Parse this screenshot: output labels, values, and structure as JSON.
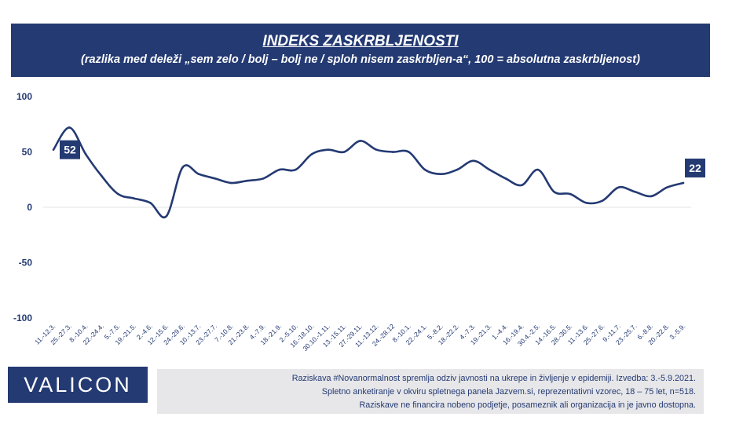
{
  "header": {
    "title": "INDEKS ZASKRBLJENOSTI",
    "subtitle": "(razlika med deleži „sem zelo / bolj – bolj  ne / sploh nisem zaskrbljen-a“, 100 = absolutna zaskrbljenost)"
  },
  "chart_data": {
    "type": "line",
    "title": "INDEKS ZASKRBLJENOSTI",
    "subtitle": "(razlika med deleži „sem zelo / bolj – bolj  ne / sploh nisem zaskrbljen-a“, 100 = absolutna zaskrbljenost)",
    "xlabel": "",
    "ylabel": "",
    "ylim": [
      -100,
      100
    ],
    "yticks": [
      "100",
      "50",
      "0",
      "-50",
      "-100"
    ],
    "grid": false,
    "color": "#243a73",
    "categories": [
      "11.-12.3.",
      "25.-27.3.",
      "8.-10.4.",
      "22.-24.4.",
      "5.-7.5.",
      "19.-21.5.",
      "2.-4.6.",
      "12.-15.6.",
      "24.-29.6.",
      "10.-13.7.",
      "23.-27.7.",
      "7.-10.8.",
      "21.-23.8.",
      "4.-7.9.",
      "18.-21.9.",
      "2.-5.10.",
      "16.-18.10.",
      "30.10.-1.11.",
      "13.-15.11.",
      "27.-29.11.",
      "11.-13.12.",
      "24.-28.12",
      "8.-10.1.",
      "22.-24.1.",
      "5.-8.2.",
      "18.-22.2.",
      "4.-7.3.",
      "19.-21.3.",
      "1.-4.4.",
      "16.-19.4.",
      "30.4.-2.5.",
      "14.-16.5.",
      "28.-30.5.",
      "11.-13.6.",
      "25.-27.6.",
      "9.-11.7.",
      "23.-25.7.",
      "6.-8.8.",
      "20.-22.8.",
      "3.-5.9."
    ],
    "series": [
      {
        "values": [
          52,
          72,
          48,
          28,
          12,
          8,
          4,
          -8,
          36,
          30,
          26,
          22,
          24,
          26,
          34,
          34,
          48,
          52,
          50,
          60,
          52,
          50,
          50,
          34,
          30,
          34,
          42,
          34,
          26,
          20,
          34,
          14,
          12,
          4,
          6,
          18,
          14,
          10,
          18,
          22
        ]
      }
    ],
    "labels": [
      {
        "index": 0,
        "text": "52"
      },
      {
        "index": 39,
        "text": "22"
      }
    ]
  },
  "logo": {
    "text": "VALICON"
  },
  "footer": {
    "line1": "Raziskava #Novanormalnost spremlja odziv javnosti na ukrepe in življenje v epidemiji. Izvedba: 3.-5.9.2021.",
    "line2": "Spletno anketiranje v okviru spletnega panela Jazvem.si, reprezentativni vzorec, 18 – 75 let, n=518.",
    "line3": "Raziskave ne financira nobeno podjetje, posameznik ali organizacija in je javno dostopna."
  }
}
